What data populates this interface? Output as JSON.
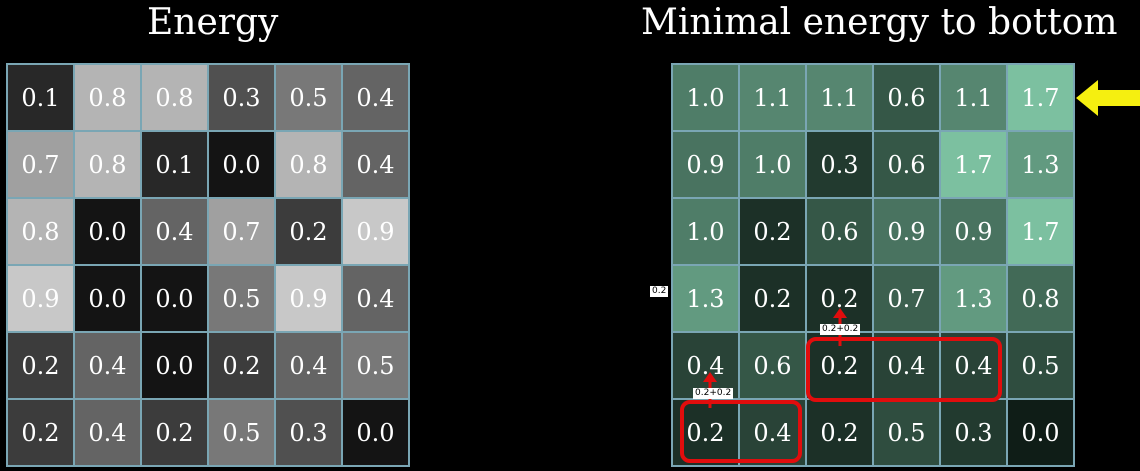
{
  "titles": {
    "left": "Energy",
    "right": "Minimal energy to bottom"
  },
  "energy": [
    [
      "0.1",
      "0.8",
      "0.8",
      "0.3",
      "0.5",
      "0.4"
    ],
    [
      "0.7",
      "0.8",
      "0.1",
      "0.0",
      "0.8",
      "0.4"
    ],
    [
      "0.8",
      "0.0",
      "0.4",
      "0.7",
      "0.2",
      "0.9"
    ],
    [
      "0.9",
      "0.0",
      "0.0",
      "0.5",
      "0.9",
      "0.4"
    ],
    [
      "0.2",
      "0.4",
      "0.0",
      "0.2",
      "0.4",
      "0.5"
    ],
    [
      "0.2",
      "0.4",
      "0.2",
      "0.5",
      "0.3",
      "0.0"
    ]
  ],
  "min_energy": [
    [
      "1.0",
      "1.1",
      "1.1",
      "0.6",
      "1.1",
      "1.7"
    ],
    [
      "0.9",
      "1.0",
      "0.3",
      "0.6",
      "1.7",
      "1.3"
    ],
    [
      "1.0",
      "0.2",
      "0.6",
      "0.9",
      "0.9",
      "1.7"
    ],
    [
      "1.3",
      "0.2",
      "0.2",
      "0.7",
      "1.3",
      "0.8"
    ],
    [
      "0.4",
      "0.6",
      "0.2",
      "0.4",
      "0.4",
      "0.5"
    ],
    [
      "0.2",
      "0.4",
      "0.2",
      "0.5",
      "0.3",
      "0.0"
    ]
  ],
  "annotations": {
    "small_label": "0.2",
    "sum_upper": "0.2+0.2",
    "sum_lower": "0.2+0.2"
  },
  "colors": {
    "grid_border": "#7aa6b4",
    "highlight": "#e10d0d",
    "pointer_arrow": "#f5ef10",
    "min_low": "#0f1d17",
    "min_high": "#7cc0a0"
  }
}
